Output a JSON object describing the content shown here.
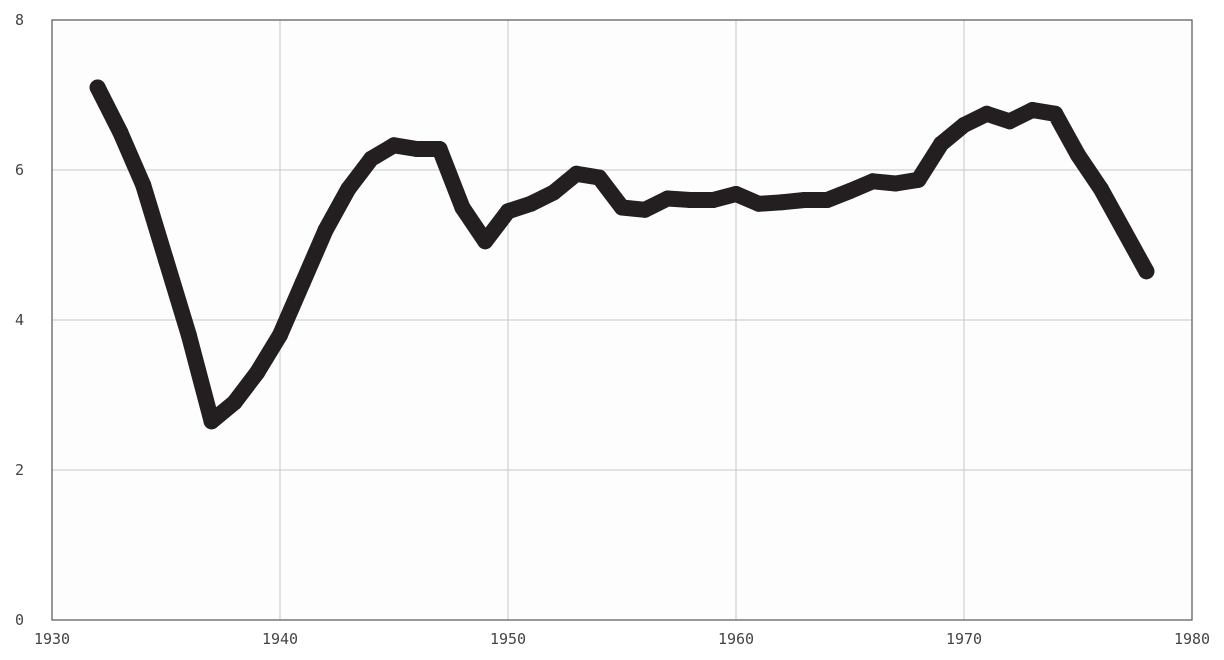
{
  "chart_data": {
    "type": "line",
    "title": "",
    "xlabel": "",
    "ylabel": "",
    "xlim": [
      1930,
      1980
    ],
    "ylim": [
      0,
      8
    ],
    "x_ticks": [
      1930,
      1940,
      1950,
      1960,
      1970,
      1980
    ],
    "y_ticks": [
      0,
      2,
      4,
      6,
      8
    ],
    "grid": true,
    "legend": "none",
    "line_color": "#231f20",
    "grid_color": "#c8c8c8",
    "series": [
      {
        "x": [
          1932,
          1933,
          1934,
          1935,
          1936,
          1937,
          1938,
          1939,
          1940,
          1941,
          1942,
          1943,
          1944,
          1945,
          1946,
          1947,
          1948,
          1949,
          1950,
          1951,
          1952,
          1953,
          1954,
          1955,
          1956,
          1957,
          1958,
          1959,
          1960,
          1961,
          1962,
          1963,
          1964,
          1965,
          1966,
          1967,
          1968,
          1969,
          1970,
          1971,
          1972,
          1973,
          1974,
          1975,
          1976,
          1977,
          1978
        ],
        "y": [
          7.1,
          6.5,
          5.8,
          4.8,
          3.8,
          2.65,
          2.9,
          3.3,
          3.8,
          4.5,
          5.2,
          5.75,
          6.15,
          6.33,
          6.28,
          6.28,
          5.5,
          5.05,
          5.45,
          5.55,
          5.7,
          5.95,
          5.9,
          5.5,
          5.47,
          5.62,
          5.6,
          5.6,
          5.68,
          5.55,
          5.57,
          5.6,
          5.6,
          5.72,
          5.85,
          5.82,
          5.87,
          6.35,
          6.6,
          6.75,
          6.65,
          6.8,
          6.75,
          6.2,
          5.75,
          5.2,
          4.65
        ]
      }
    ]
  }
}
